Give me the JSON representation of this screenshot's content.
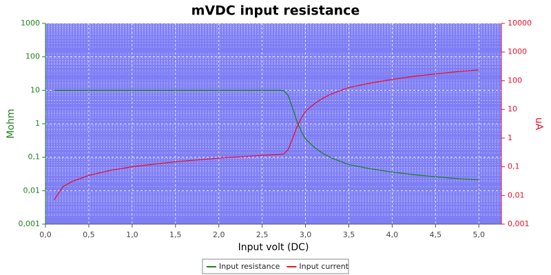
{
  "chart_data": {
    "type": "line",
    "title": "mVDC input resistance",
    "x_label": "Input volt (DC)",
    "y_label": "Mohm",
    "y2_label": "uA",
    "x": [
      0.1,
      0.2,
      0.3,
      0.5,
      0.75,
      1.0,
      1.5,
      2.0,
      2.5,
      2.7,
      2.75,
      2.8,
      2.85,
      2.9,
      2.95,
      3.0,
      3.1,
      3.2,
      3.3,
      3.5,
      3.75,
      4.0,
      4.25,
      4.5,
      4.75,
      5.0
    ],
    "series": [
      {
        "name": "Input resistance",
        "color": "#1e7f1e",
        "axis": "y",
        "values": [
          10,
          10,
          10,
          10,
          10,
          10,
          10,
          10,
          10,
          10,
          9.8,
          7,
          3,
          1.2,
          0.6,
          0.35,
          0.2,
          0.13,
          0.095,
          0.06,
          0.045,
          0.036,
          0.03,
          0.026,
          0.023,
          0.021
        ]
      },
      {
        "name": "Input current",
        "color": "#e8102a",
        "axis": "y2",
        "values": [
          0.007,
          0.02,
          0.03,
          0.05,
          0.075,
          0.1,
          0.15,
          0.2,
          0.25,
          0.27,
          0.28,
          0.4,
          0.95,
          2.4,
          4.9,
          8.6,
          15.5,
          24.6,
          34.7,
          58,
          83,
          111,
          142,
          173,
          207,
          238
        ]
      }
    ],
    "xlim": [
      0,
      5.26
    ],
    "xticks": [
      {
        "value": 0,
        "label": "0,0"
      },
      {
        "value": 0.5,
        "label": "0,5"
      },
      {
        "value": 1,
        "label": "1,0"
      },
      {
        "value": 1.5,
        "label": "1,5"
      },
      {
        "value": 2,
        "label": "2,0"
      },
      {
        "value": 2.5,
        "label": "2,5"
      },
      {
        "value": 3,
        "label": "3,0"
      },
      {
        "value": 3.5,
        "label": "3,5"
      },
      {
        "value": 4,
        "label": "4,0"
      },
      {
        "value": 4.5,
        "label": "4,5"
      },
      {
        "value": 5,
        "label": "5,0"
      }
    ],
    "ylim": [
      0.001,
      1000
    ],
    "yticks": [
      1000,
      100,
      10,
      1,
      {
        "value": 0.1,
        "label": "0,1"
      },
      {
        "value": 0.01,
        "label": "0,01"
      },
      {
        "value": 0.001,
        "label": "0,001"
      }
    ],
    "y2lim": [
      0.001,
      10000
    ],
    "y2ticks": [
      10000,
      1000,
      100,
      10,
      1,
      {
        "value": 0.1,
        "label": "0,1"
      },
      {
        "value": 0.01,
        "label": "0,01"
      },
      {
        "value": 0.001,
        "label": "0,001"
      }
    ],
    "log_y": true,
    "log_y2": true,
    "grid": true,
    "legend": "bottom",
    "background": "#7f7ff5",
    "y_color": "#1e7f1e",
    "y2_color": "#e8102a"
  }
}
